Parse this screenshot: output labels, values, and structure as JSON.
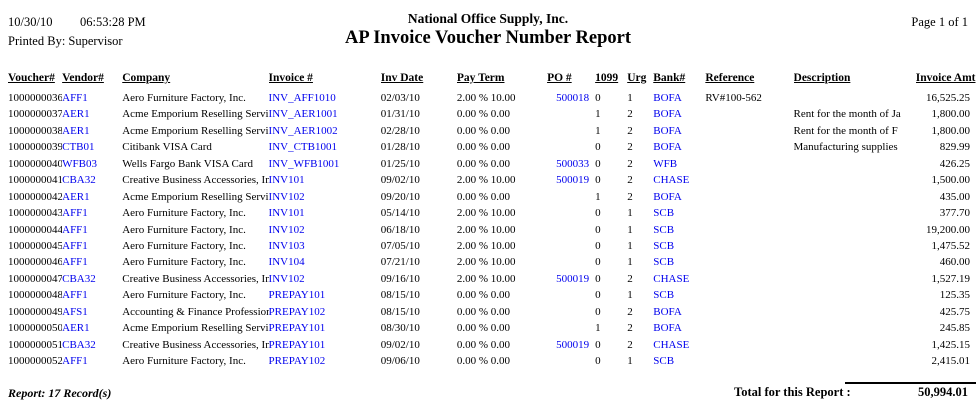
{
  "header": {
    "date": "10/30/10",
    "time": "06:53:28 PM",
    "printed_by": "Printed By: Supervisor",
    "company_name": "National Office Supply, Inc.",
    "report_title": "AP Invoice Voucher Number Report",
    "page_info": "Page 1 of 1"
  },
  "colors": {
    "link_blue": "#0000EE",
    "text": "#000000",
    "background": "#FFFFFF"
  },
  "table": {
    "columns": [
      "Voucher#",
      "Vendor#",
      "Company",
      "Invoice #",
      "Inv Date",
      "Pay Term",
      "PO #",
      "1099",
      "Urg",
      "Bank#",
      "Reference",
      "Description",
      "Invoice Amt"
    ],
    "rows": [
      [
        "1000000036",
        "AFF1",
        "Aero Furniture Factory, Inc.",
        "INV_AFF1010",
        "02/03/10",
        "2.00 % 10.00",
        "500018",
        "0",
        "1",
        "BOFA",
        "RV#100-562",
        "",
        "16,525.25"
      ],
      [
        "1000000037",
        "AER1",
        "Acme Emporium Reselling Servic",
        "INV_AER1001",
        "01/31/10",
        "0.00 % 0.00",
        "",
        "1",
        "2",
        "BOFA",
        "",
        "Rent for the month of Ja",
        "1,800.00"
      ],
      [
        "1000000038",
        "AER1",
        "Acme Emporium Reselling Servic",
        "INV_AER1002",
        "02/28/10",
        "0.00 % 0.00",
        "",
        "1",
        "2",
        "BOFA",
        "",
        "Rent for the month of F",
        "1,800.00"
      ],
      [
        "1000000039",
        "CTB01",
        "Citibank VISA Card",
        "INV_CTB1001",
        "01/28/10",
        "0.00 % 0.00",
        "",
        "0",
        "2",
        "BOFA",
        "",
        "Manufacturing supplies",
        "829.99"
      ],
      [
        "1000000040",
        "WFB03",
        "Wells Fargo Bank VISA Card",
        "INV_WFB1001",
        "01/25/10",
        "0.00 % 0.00",
        "500033",
        "0",
        "2",
        "WFB",
        "",
        "",
        "426.25"
      ],
      [
        "1000000041",
        "CBA32",
        "Creative Business Accessories, In",
        "INV101",
        "09/02/10",
        "2.00 % 10.00",
        "500019",
        "0",
        "2",
        "CHASE",
        "",
        "",
        "1,500.00"
      ],
      [
        "1000000042",
        "AER1",
        "Acme Emporium Reselling Servic",
        "INV102",
        "09/20/10",
        "0.00 % 0.00",
        "",
        "1",
        "2",
        "BOFA",
        "",
        "",
        "435.00"
      ],
      [
        "1000000043",
        "AFF1",
        "Aero Furniture Factory, Inc.",
        "INV101",
        "05/14/10",
        "2.00 % 10.00",
        "",
        "0",
        "1",
        "SCB",
        "",
        "",
        "377.70"
      ],
      [
        "1000000044",
        "AFF1",
        "Aero Furniture Factory, Inc.",
        "INV102",
        "06/18/10",
        "2.00 % 10.00",
        "",
        "0",
        "1",
        "SCB",
        "",
        "",
        "19,200.00"
      ],
      [
        "1000000045",
        "AFF1",
        "Aero Furniture Factory, Inc.",
        "INV103",
        "07/05/10",
        "2.00 % 10.00",
        "",
        "0",
        "1",
        "SCB",
        "",
        "",
        "1,475.52"
      ],
      [
        "1000000046",
        "AFF1",
        "Aero Furniture Factory, Inc.",
        "INV104",
        "07/21/10",
        "2.00 % 10.00",
        "",
        "0",
        "1",
        "SCB",
        "",
        "",
        "460.00"
      ],
      [
        "1000000047",
        "CBA32",
        "Creative Business Accessories, In",
        "INV102",
        "09/16/10",
        "2.00 % 10.00",
        "500019",
        "0",
        "2",
        "CHASE",
        "",
        "",
        "1,527.19"
      ],
      [
        "1000000048",
        "AFF1",
        "Aero Furniture Factory, Inc.",
        "PREPAY101",
        "08/15/10",
        "0.00 % 0.00",
        "",
        "0",
        "1",
        "SCB",
        "",
        "",
        "125.35"
      ],
      [
        "1000000049",
        "AFS1",
        "Accounting & Finance Profession",
        "PREPAY102",
        "08/15/10",
        "0.00 % 0.00",
        "",
        "0",
        "2",
        "BOFA",
        "",
        "",
        "425.75"
      ],
      [
        "1000000050",
        "AER1",
        "Acme Emporium Reselling Servic",
        "PREPAY101",
        "08/30/10",
        "0.00 % 0.00",
        "",
        "1",
        "2",
        "BOFA",
        "",
        "",
        "245.85"
      ],
      [
        "1000000051",
        "CBA32",
        "Creative Business Accessories, In",
        "PREPAY101",
        "09/02/10",
        "0.00 % 0.00",
        "500019",
        "0",
        "2",
        "CHASE",
        "",
        "",
        "1,425.15"
      ],
      [
        "1000000052",
        "AFF1",
        "Aero Furniture Factory, Inc.",
        "PREPAY102",
        "09/06/10",
        "0.00 % 0.00",
        "",
        "0",
        "1",
        "SCB",
        "",
        "",
        "2,415.01"
      ]
    ]
  },
  "footer": {
    "record_count": "Report: 17 Record(s)",
    "total_label": "Total for this Report :",
    "total_amount": "50,994.01"
  }
}
